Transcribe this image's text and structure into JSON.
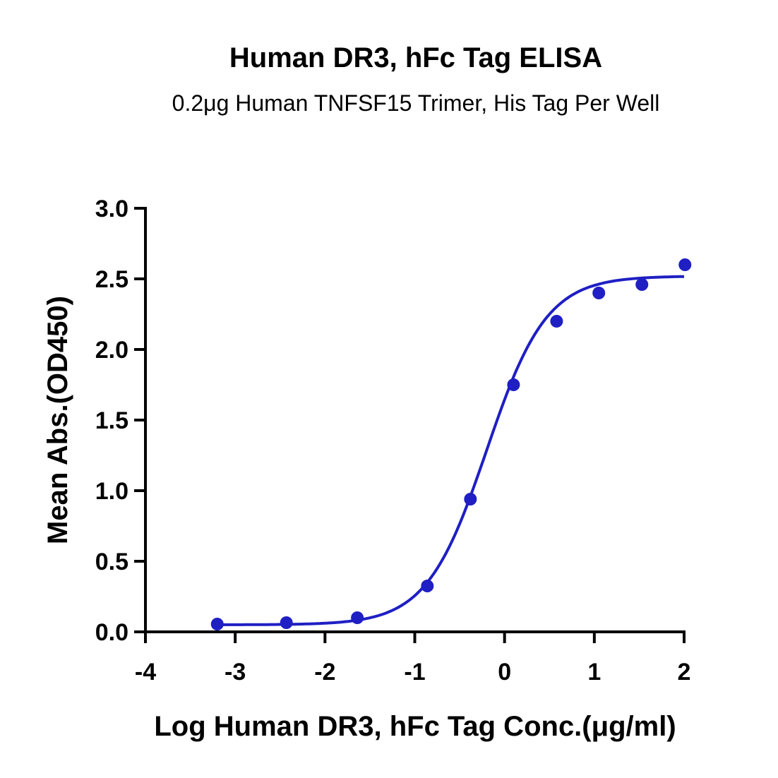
{
  "chart_data": {
    "type": "scatter",
    "title": "Human DR3, hFc Tag ELISA",
    "subtitle": "0.2μg Human TNFSF15 Trimer, His Tag Per Well",
    "xlabel": "Log Human DR3, hFc Tag Conc.(μg/ml)",
    "ylabel": "Mean Abs.(OD450)",
    "xlim": [
      -4,
      2
    ],
    "ylim": [
      0,
      3.0
    ],
    "xticks": [
      "-4",
      "-3",
      "-2",
      "-1",
      "0",
      "1",
      "2"
    ],
    "yticks": [
      "0.0",
      "0.5",
      "1.0",
      "1.5",
      "2.0",
      "2.5",
      "3.0"
    ],
    "grid": false,
    "color": "#1f1fc4",
    "points": {
      "x": [
        -3.2,
        -2.43,
        -1.64,
        -0.86,
        -0.38,
        0.1,
        0.58,
        1.05,
        1.53,
        2.01
      ],
      "y": [
        0.055,
        0.065,
        0.1,
        0.325,
        0.94,
        1.75,
        2.2,
        2.4,
        2.46,
        2.6
      ]
    },
    "fit": {
      "model": "4PL",
      "bottom": 0.05,
      "top": 2.52,
      "logEC50": -0.2,
      "hill": 1.3,
      "xrange": [
        -3.2,
        2.0
      ]
    }
  }
}
